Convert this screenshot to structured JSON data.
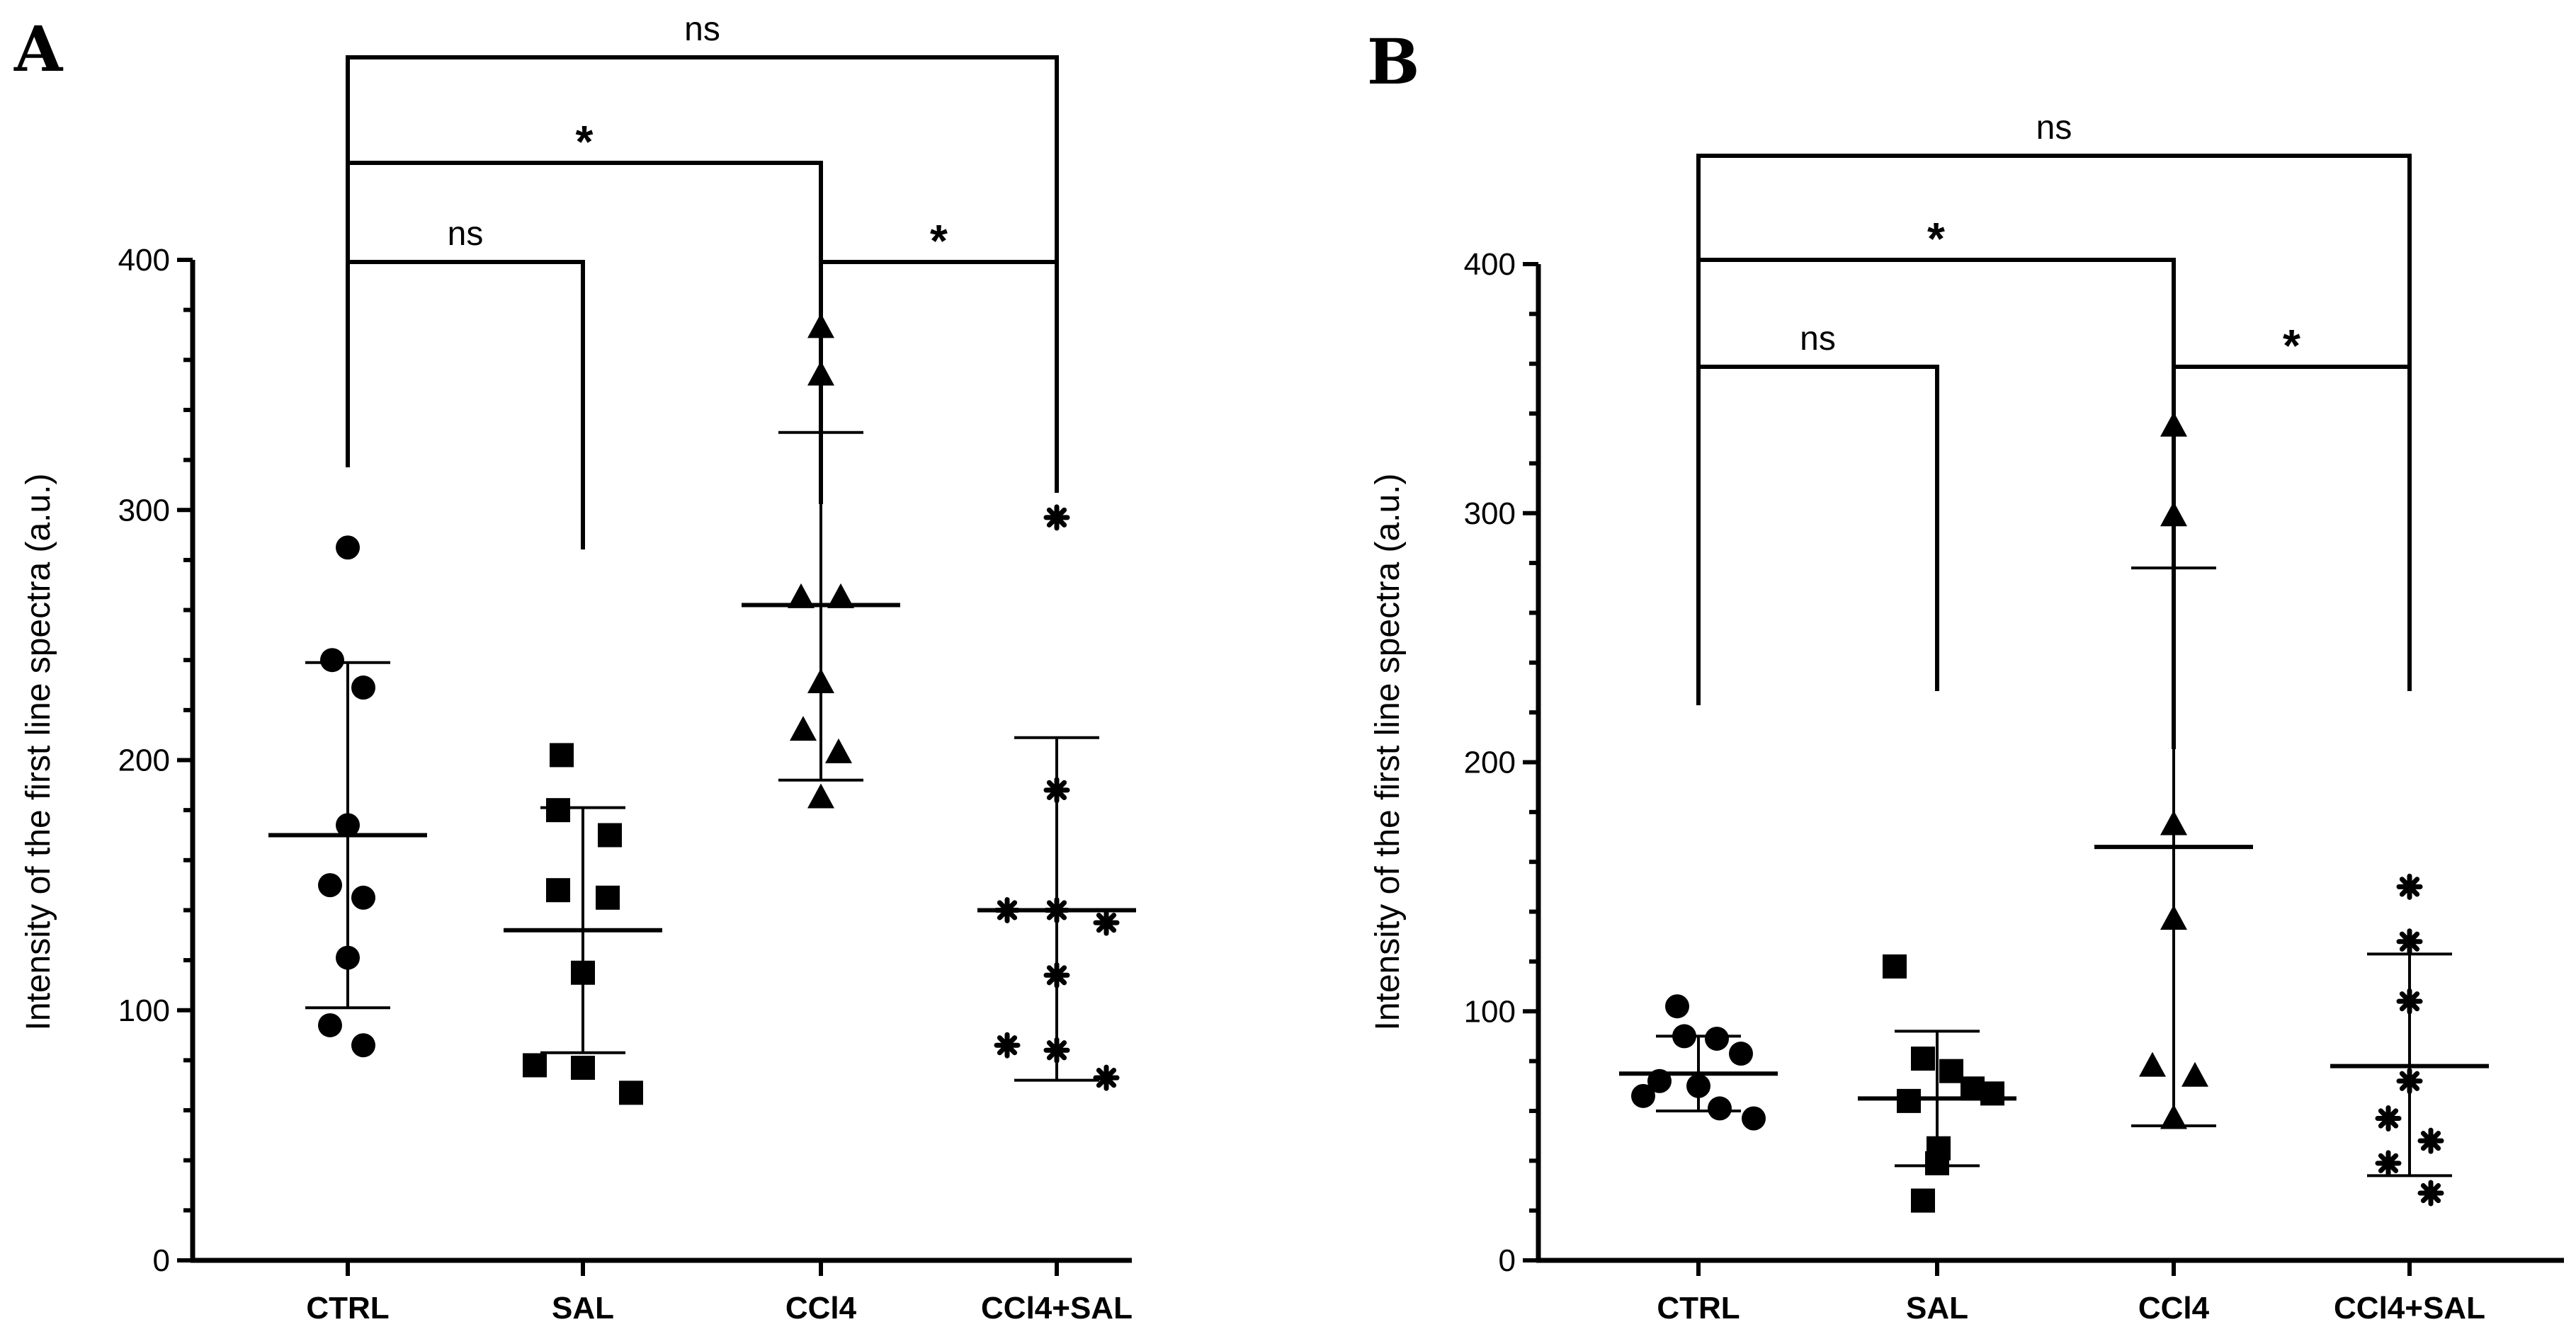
{
  "chart_data": [
    {
      "type": "scatter",
      "panel": "A",
      "ylabel": "Intensity of the first line spectra (a.u.)",
      "xlabel": "",
      "ylim": [
        0,
        400
      ],
      "yticks": [
        0,
        100,
        200,
        300,
        400
      ],
      "grid": false,
      "categories": [
        "CTRL",
        "SAL",
        "CCl4",
        "CCl4+SAL"
      ],
      "markers": [
        "circle",
        "square",
        "triangle",
        "asterisk"
      ],
      "groups": [
        {
          "category": "CTRL",
          "points": [
            285,
            240,
            229,
            174,
            150,
            145,
            121,
            94,
            86
          ],
          "mean": 170,
          "sd_low": 101,
          "sd_high": 239
        },
        {
          "category": "SAL",
          "points": [
            202,
            180,
            170,
            148,
            145,
            115,
            78,
            77,
            67
          ],
          "mean": 132,
          "sd_low": 83,
          "sd_high": 181
        },
        {
          "category": "CCl4",
          "points": [
            373,
            354,
            265,
            265,
            231,
            212,
            203,
            185
          ],
          "mean": 262,
          "sd_low": 192,
          "sd_high": 331
        },
        {
          "category": "CCl4+SAL",
          "points": [
            297,
            188,
            140,
            140,
            135,
            114,
            86,
            84,
            73
          ],
          "mean": 140,
          "sd_low": 72,
          "sd_high": 209
        }
      ],
      "comparisons": [
        {
          "from": "CTRL",
          "to": "CCl4+SAL",
          "label": "ns"
        },
        {
          "from": "CTRL",
          "to": "CCl4",
          "label": "*"
        },
        {
          "from": "CTRL",
          "to": "SAL",
          "label": "ns"
        },
        {
          "from": "CCl4",
          "to": "CCl4+SAL",
          "label": "*"
        }
      ]
    },
    {
      "type": "scatter",
      "panel": "B",
      "ylabel": "Intensity of the first line spectra (a.u.)",
      "xlabel": "",
      "ylim": [
        0,
        400
      ],
      "yticks": [
        0,
        100,
        200,
        300,
        400
      ],
      "grid": false,
      "categories": [
        "CTRL",
        "SAL",
        "CCl4",
        "CCl4+SAL"
      ],
      "markers": [
        "circle",
        "square",
        "triangle",
        "asterisk"
      ],
      "groups": [
        {
          "category": "CTRL",
          "points": [
            102,
            90,
            89,
            83,
            72,
            70,
            66,
            61,
            57
          ],
          "mean": 75,
          "sd_low": 60,
          "sd_high": 90
        },
        {
          "category": "SAL",
          "points": [
            118,
            81,
            76,
            69,
            67,
            64,
            45,
            39,
            24
          ],
          "mean": 65,
          "sd_low": 38,
          "sd_high": 92
        },
        {
          "category": "CCl4",
          "points": [
            335,
            299,
            175,
            137,
            78,
            74,
            57
          ],
          "mean": 166,
          "sd_low": 54,
          "sd_high": 278
        },
        {
          "category": "CCl4+SAL",
          "points": [
            150,
            128,
            104,
            72,
            57,
            48,
            39,
            27
          ],
          "mean": 78,
          "sd_low": 34,
          "sd_high": 123
        }
      ],
      "comparisons": [
        {
          "from": "CTRL",
          "to": "CCl4+SAL",
          "label": "ns"
        },
        {
          "from": "CTRL",
          "to": "CCl4",
          "label": "*"
        },
        {
          "from": "CTRL",
          "to": "SAL",
          "label": "ns"
        },
        {
          "from": "CCl4",
          "to": "CCl4+SAL",
          "label": "*"
        }
      ]
    }
  ]
}
